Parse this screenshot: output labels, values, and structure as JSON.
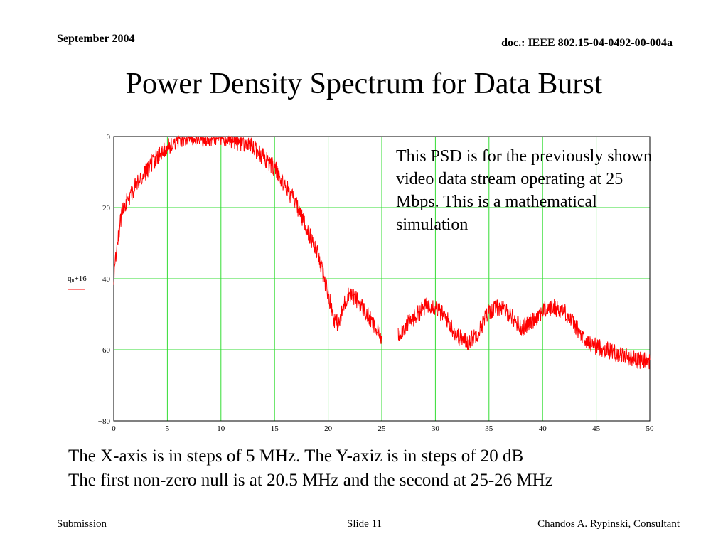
{
  "header": {
    "date": "September 2004",
    "doc": "doc.: IEEE 802.15-04-0492-00-004a"
  },
  "title": "Power Density Spectrum for Data Burst",
  "note": "This PSD is for the previously shown video data stream operating at 25 Mbps.  This is a mathematical simulation",
  "caption": {
    "line1": "The X-axis is in steps of 5 MHz.  The Y-axiz is in steps of 20 dB",
    "line2": "The first non-zero null is at 20.5 MHz and the second at 25-26 MHz"
  },
  "footer": {
    "left": "Submission",
    "center": "Slide 11",
    "right": "Chandos A. Rypinski, Consultant"
  },
  "chart_data": {
    "type": "line",
    "title": "",
    "xlabel": "",
    "ylabel": "q_n+16",
    "ylabel_main": "q",
    "ylabel_sub": "n",
    "ylabel_suffix": "+16",
    "xlim": [
      0,
      50
    ],
    "ylim": [
      -80,
      0
    ],
    "xticks": [
      0,
      5,
      10,
      15,
      20,
      25,
      30,
      35,
      40,
      45,
      50
    ],
    "yticks": [
      0,
      -20,
      -40,
      -60,
      -80
    ],
    "ytick_labels": [
      "0",
      "−20",
      "−40",
      "−60",
      "−80"
    ],
    "grid": true,
    "grid_color": "#33dd33",
    "series": [
      {
        "name": "",
        "color": "#ff0000",
        "noise": 2.5,
        "segments": [
          {
            "x": [
              0,
              0.3,
              0.7,
              1,
              1.5,
              2,
              3,
              4,
              5,
              6,
              7,
              8,
              9,
              10,
              11,
              12,
              13,
              14,
              15,
              16,
              17,
              18,
              19,
              20,
              20.5,
              21,
              21.5,
              22,
              23,
              24,
              25
            ],
            "y": [
              -40,
              -30,
              -23,
              -19,
              -17,
              -14,
              -10,
              -6,
              -3,
              -1,
              0,
              0,
              -1,
              0,
              -1,
              -2,
              -3,
              -6,
              -9,
              -14,
              -19,
              -26,
              -33,
              -44,
              -51,
              -53,
              -47,
              -44,
              -47,
              -52,
              -57
            ]
          },
          {
            "x": [
              26.5,
              27,
              28,
              29,
              29.5,
              30,
              31,
              32,
              33,
              34,
              35,
              36,
              37,
              38,
              39,
              40,
              41,
              42,
              43,
              44,
              45,
              46,
              47,
              48,
              49,
              50
            ],
            "y": [
              -56,
              -54,
              -51,
              -48,
              -47,
              -48,
              -51,
              -56,
              -58,
              -55,
              -49,
              -48,
              -50,
              -54,
              -52,
              -49,
              -48,
              -49,
              -53,
              -58,
              -59,
              -60,
              -61,
              -62,
              -63,
              -63
            ]
          }
        ]
      }
    ]
  }
}
